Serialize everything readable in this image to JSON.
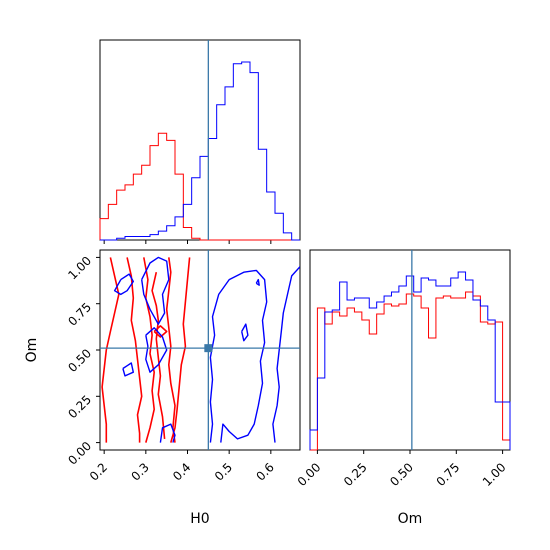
{
  "chart_data": {
    "type": "corner",
    "parameters": [
      "H0",
      "Om"
    ],
    "truth": {
      "H0": 0.45,
      "Om": 0.51
    },
    "colors": {
      "series_red": "#ff0000",
      "series_blue": "#0000ff",
      "truth": "#3a78a8"
    },
    "axes": {
      "H0": {
        "label": "H0",
        "range": [
          0.19,
          0.67
        ],
        "ticks": [
          "0.2",
          "0.3",
          "0.4",
          "0.5",
          "0.6"
        ]
      },
      "Om": {
        "label": "Om",
        "range": [
          -0.04,
          1.04
        ],
        "ticks": [
          "0.00",
          "0.25",
          "0.50",
          "0.75",
          "1.00"
        ]
      }
    },
    "hist_H0": {
      "bin_edges": [
        0.19,
        0.21,
        0.23,
        0.25,
        0.27,
        0.29,
        0.31,
        0.33,
        0.35,
        0.37,
        0.39,
        0.41,
        0.43,
        0.45,
        0.47,
        0.49,
        0.51,
        0.53,
        0.55,
        0.57,
        0.59,
        0.61,
        0.63,
        0.65,
        0.67
      ],
      "red": [
        0.12,
        0.2,
        0.28,
        0.31,
        0.37,
        0.42,
        0.53,
        0.6,
        0.56,
        0.37,
        0.07,
        0.01,
        0,
        0,
        0,
        0,
        0,
        0,
        0,
        0,
        0,
        0,
        0,
        0
      ],
      "blue": [
        0,
        0,
        0.01,
        0.02,
        0.02,
        0.02,
        0.03,
        0.05,
        0.08,
        0.13,
        0.2,
        0.35,
        0.47,
        0.57,
        0.76,
        0.86,
        0.99,
        1.0,
        0.94,
        0.51,
        0.27,
        0.15,
        0.04,
        0
      ]
    },
    "hist_Om": {
      "bin_edges": [
        -0.04,
        0.0,
        0.04,
        0.08,
        0.12,
        0.16,
        0.2,
        0.24,
        0.28,
        0.32,
        0.36,
        0.4,
        0.44,
        0.48,
        0.52,
        0.56,
        0.6,
        0.64,
        0.68,
        0.72,
        0.76,
        0.8,
        0.84,
        0.88,
        0.92,
        0.96,
        1.0,
        1.04
      ],
      "red": [
        0,
        0.71,
        0.63,
        0.69,
        0.67,
        0.71,
        0.69,
        0.65,
        0.58,
        0.68,
        0.73,
        0.72,
        0.73,
        0.78,
        0.77,
        0.71,
        0.56,
        0.76,
        0.77,
        0.76,
        0.76,
        0.79,
        0.77,
        0.64,
        0.63,
        0.64,
        0.05
      ],
      "blue": [
        0.1,
        0.36,
        0.69,
        0.7,
        0.84,
        0.75,
        0.76,
        0.76,
        0.71,
        0.74,
        0.77,
        0.79,
        0.82,
        0.87,
        0.79,
        0.86,
        0.85,
        0.82,
        0.82,
        0.86,
        0.89,
        0.85,
        0.75,
        0.72,
        0.65,
        0.24,
        0.24
      ]
    },
    "contours_red": [
      [
        [
          0.215,
          1.0
        ],
        [
          0.225,
          0.9
        ],
        [
          0.235,
          0.8
        ],
        [
          0.225,
          0.7
        ],
        [
          0.215,
          0.6
        ],
        [
          0.205,
          0.5
        ],
        [
          0.2,
          0.4
        ],
        [
          0.195,
          0.3
        ],
        [
          0.2,
          0.2
        ],
        [
          0.205,
          0.1
        ],
        [
          0.205,
          0.0
        ]
      ],
      [
        [
          0.255,
          1.0
        ],
        [
          0.265,
          0.9
        ],
        [
          0.27,
          0.78
        ],
        [
          0.265,
          0.66
        ],
        [
          0.275,
          0.55
        ],
        [
          0.28,
          0.45
        ],
        [
          0.285,
          0.35
        ],
        [
          0.29,
          0.25
        ],
        [
          0.28,
          0.15
        ],
        [
          0.285,
          0.05
        ],
        [
          0.285,
          0.0
        ]
      ],
      [
        [
          0.295,
          1.0
        ],
        [
          0.305,
          0.88
        ],
        [
          0.3,
          0.78
        ],
        [
          0.31,
          0.68
        ],
        [
          0.315,
          0.58
        ],
        [
          0.31,
          0.48
        ],
        [
          0.32,
          0.38
        ],
        [
          0.315,
          0.28
        ],
        [
          0.32,
          0.18
        ],
        [
          0.31,
          0.08
        ],
        [
          0.3,
          0.0
        ]
      ],
      [
        [
          0.325,
          0.92
        ],
        [
          0.315,
          0.82
        ],
        [
          0.325,
          0.74
        ],
        [
          0.33,
          0.66
        ],
        [
          0.325,
          0.56
        ],
        [
          0.33,
          0.46
        ],
        [
          0.335,
          0.36
        ],
        [
          0.33,
          0.26
        ],
        [
          0.34,
          0.14
        ],
        [
          0.345,
          0.02
        ]
      ],
      [
        [
          0.355,
          1.0
        ],
        [
          0.36,
          0.92
        ],
        [
          0.355,
          0.82
        ],
        [
          0.35,
          0.72
        ],
        [
          0.355,
          0.62
        ],
        [
          0.36,
          0.52
        ],
        [
          0.355,
          0.42
        ],
        [
          0.36,
          0.32
        ],
        [
          0.37,
          0.2
        ],
        [
          0.365,
          0.08
        ],
        [
          0.37,
          0.0
        ]
      ],
      [
        [
          0.405,
          1.0
        ],
        [
          0.4,
          0.88
        ],
        [
          0.395,
          0.76
        ],
        [
          0.39,
          0.64
        ],
        [
          0.395,
          0.52
        ],
        [
          0.385,
          0.42
        ],
        [
          0.38,
          0.3
        ],
        [
          0.375,
          0.18
        ],
        [
          0.37,
          0.08
        ],
        [
          0.36,
          0.0
        ]
      ],
      [
        [
          0.32,
          0.6
        ],
        [
          0.335,
          0.63
        ],
        [
          0.35,
          0.6
        ],
        [
          0.335,
          0.57
        ],
        [
          0.32,
          0.6
        ]
      ]
    ],
    "contours_blue": [
      [
        [
          0.24,
          0.88
        ],
        [
          0.26,
          0.91
        ],
        [
          0.27,
          0.87
        ],
        [
          0.255,
          0.82
        ],
        [
          0.24,
          0.8
        ],
        [
          0.225,
          0.82
        ],
        [
          0.24,
          0.88
        ]
      ],
      [
        [
          0.29,
          0.88
        ],
        [
          0.31,
          0.97
        ],
        [
          0.33,
          1.0
        ],
        [
          0.35,
          0.98
        ],
        [
          0.355,
          0.88
        ],
        [
          0.34,
          0.8
        ],
        [
          0.345,
          0.7
        ],
        [
          0.33,
          0.64
        ],
        [
          0.31,
          0.72
        ],
        [
          0.295,
          0.8
        ],
        [
          0.29,
          0.88
        ]
      ],
      [
        [
          0.3,
          0.58
        ],
        [
          0.32,
          0.62
        ],
        [
          0.34,
          0.57
        ],
        [
          0.35,
          0.5
        ],
        [
          0.33,
          0.42
        ],
        [
          0.31,
          0.38
        ],
        [
          0.3,
          0.45
        ],
        [
          0.305,
          0.52
        ],
        [
          0.3,
          0.58
        ]
      ],
      [
        [
          0.245,
          0.4
        ],
        [
          0.265,
          0.43
        ],
        [
          0.27,
          0.38
        ],
        [
          0.25,
          0.36
        ],
        [
          0.245,
          0.4
        ]
      ],
      [
        [
          0.335,
          0.0
        ],
        [
          0.34,
          0.08
        ],
        [
          0.36,
          0.1
        ],
        [
          0.37,
          0.04
        ],
        [
          0.365,
          0.0
        ]
      ],
      [
        [
          0.455,
          0.0
        ],
        [
          0.46,
          0.1
        ],
        [
          0.455,
          0.22
        ],
        [
          0.46,
          0.34
        ],
        [
          0.455,
          0.46
        ],
        [
          0.465,
          0.58
        ],
        [
          0.46,
          0.68
        ],
        [
          0.475,
          0.8
        ],
        [
          0.5,
          0.88
        ],
        [
          0.535,
          0.92
        ],
        [
          0.565,
          0.93
        ],
        [
          0.585,
          0.88
        ],
        [
          0.59,
          0.76
        ],
        [
          0.58,
          0.66
        ],
        [
          0.585,
          0.54
        ],
        [
          0.575,
          0.44
        ],
        [
          0.58,
          0.32
        ],
        [
          0.57,
          0.2
        ],
        [
          0.56,
          0.1
        ],
        [
          0.545,
          0.04
        ],
        [
          0.52,
          0.02
        ],
        [
          0.5,
          0.06
        ],
        [
          0.485,
          0.1
        ],
        [
          0.48,
          0.0
        ]
      ],
      [
        [
          0.53,
          0.6
        ],
        [
          0.54,
          0.64
        ],
        [
          0.545,
          0.58
        ],
        [
          0.535,
          0.55
        ],
        [
          0.53,
          0.6
        ]
      ],
      [
        [
          0.565,
          0.86
        ],
        [
          0.57,
          0.88
        ],
        [
          0.572,
          0.85
        ],
        [
          0.565,
          0.86
        ]
      ],
      [
        [
          0.67,
          0.95
        ],
        [
          0.65,
          0.9
        ],
        [
          0.64,
          0.8
        ],
        [
          0.63,
          0.7
        ],
        [
          0.625,
          0.6
        ],
        [
          0.62,
          0.5
        ],
        [
          0.615,
          0.4
        ],
        [
          0.62,
          0.3
        ],
        [
          0.615,
          0.2
        ],
        [
          0.605,
          0.1
        ],
        [
          0.61,
          0.0
        ]
      ]
    ]
  }
}
